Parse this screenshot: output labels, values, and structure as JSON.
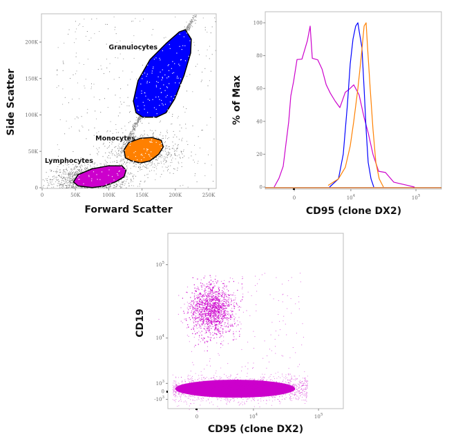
{
  "colors": {
    "lymphocytes": "#cc00cc",
    "monocytes": "#ff8000",
    "granulocytes": "#0000ff",
    "ungated": "#808080"
  },
  "chart_data": [
    {
      "type": "scatter",
      "xlabel": "Forward Scatter",
      "ylabel": "Side Scatter",
      "xlim": [
        0,
        265000
      ],
      "ylim": [
        -5000,
        240000
      ],
      "xticks": [
        {
          "v": 0,
          "label": "0"
        },
        {
          "v": 50000,
          "label": "50K"
        },
        {
          "v": 100000,
          "label": "100K"
        },
        {
          "v": 150000,
          "label": "150K"
        },
        {
          "v": 200000,
          "label": "200K"
        },
        {
          "v": 250000,
          "label": "250K"
        }
      ],
      "yticks": [
        {
          "v": 0,
          "label": "0"
        },
        {
          "v": 50000,
          "label": "50K"
        },
        {
          "v": 100000,
          "label": "100K"
        },
        {
          "v": 150000,
          "label": "150K"
        },
        {
          "v": 200000,
          "label": "200K"
        }
      ],
      "gates": [
        {
          "name": "Granulocytes",
          "color": "#0000ff",
          "polygon": [
            [
              215000,
              217000
            ],
            [
              224000,
              204000
            ],
            [
              223000,
              185000
            ],
            [
              213000,
              154000
            ],
            [
              199000,
              122000
            ],
            [
              186000,
              103000
            ],
            [
              172000,
              97000
            ],
            [
              151000,
              97000
            ],
            [
              141000,
              103000
            ],
            [
              137000,
              119000
            ],
            [
              144000,
              147000
            ],
            [
              162000,
              176000
            ],
            [
              186000,
              198000
            ],
            [
              206000,
              214000
            ]
          ],
          "label_at": [
            100000,
            190000
          ]
        },
        {
          "name": "Monocytes",
          "color": "#ff8000",
          "polygon": [
            [
              123000,
              52000
            ],
            [
              130000,
              62000
            ],
            [
              148000,
              68000
            ],
            [
              165000,
              69000
            ],
            [
              179000,
              65000
            ],
            [
              182000,
              56000
            ],
            [
              175000,
              46000
            ],
            [
              162000,
              37000
            ],
            [
              148000,
              34000
            ],
            [
              134000,
              37000
            ],
            [
              125000,
              41000
            ]
          ],
          "label_at": [
            80000,
            65000
          ]
        },
        {
          "name": "Lymphocytes",
          "color": "#cc00cc",
          "polygon": [
            [
              47000,
              8000
            ],
            [
              54000,
              18000
            ],
            [
              75000,
              26000
            ],
            [
              99000,
              30000
            ],
            [
              120000,
              30000
            ],
            [
              126000,
              24000
            ],
            [
              123000,
              15000
            ],
            [
              110000,
              8000
            ],
            [
              92000,
              2000
            ],
            [
              75000,
              300
            ],
            [
              54000,
              2500
            ]
          ],
          "label_at": [
            4000,
            34000
          ]
        }
      ]
    },
    {
      "type": "line",
      "xlabel": "CD95 (clone DX2)",
      "ylabel": "% of Max",
      "xscale": "biexponential",
      "xlim": [
        -3500,
        240000
      ],
      "ylim": [
        0,
        100
      ],
      "xticks": [
        {
          "v": 0,
          "label": "0"
        },
        {
          "v": 10000,
          "base": "10",
          "exp": "4"
        },
        {
          "v": 100000,
          "base": "10",
          "exp": "5"
        }
      ],
      "yticks": [
        0,
        20,
        40,
        60,
        80,
        100
      ],
      "series": [
        {
          "color": "#cc00cc",
          "x": [
            -2140,
            -1570,
            -1110,
            -830,
            -550,
            -340,
            -70,
            270,
            760,
            1330,
            1640,
            1890,
            2580,
            3180,
            3830,
            4550,
            5540,
            6650,
            8170,
            9300,
            11100,
            13500,
            16100,
            18600,
            22100,
            26900,
            34300,
            45900,
            74500,
            95200
          ],
          "y": [
            0,
            5,
            15,
            25,
            40,
            55,
            65,
            75,
            80,
            88,
            98,
            80,
            78,
            72,
            65,
            57,
            52,
            50,
            55,
            58,
            60,
            55,
            45,
            35,
            20,
            12,
            6,
            3,
            1,
            0
          ]
        },
        {
          "color": "#0000ff",
          "x": [
            4430,
            6300,
            7560,
            8820,
            9770,
            10800,
            11900,
            12900,
            13500,
            14900,
            16100,
            17300,
            18600,
            20600,
            22700
          ],
          "y": [
            0,
            5,
            20,
            50,
            75,
            90,
            98,
            100,
            95,
            85,
            60,
            35,
            15,
            5,
            0
          ]
        },
        {
          "color": "#ff8000",
          "x": [
            4170,
            6300,
            8170,
            9770,
            11100,
            12900,
            14600,
            16100,
            17300,
            18200,
            20000,
            22100,
            24400,
            27500,
            31900
          ],
          "y": [
            1,
            5,
            12,
            25,
            40,
            60,
            80,
            98,
            100,
            85,
            60,
            35,
            15,
            5,
            0
          ]
        }
      ]
    },
    {
      "type": "scatter",
      "xlabel": "CD95 (clone DX2)",
      "ylabel": "CD19",
      "xscale": "biexponential",
      "yscale": "biexponential",
      "xlim": [
        -3500,
        240000
      ],
      "ylim": [
        -2000,
        250000
      ],
      "xticks": [
        {
          "v": 0,
          "label": "0"
        },
        {
          "v": 10000,
          "base": "10",
          "exp": "4"
        },
        {
          "v": 100000,
          "base": "10",
          "exp": "5"
        }
      ],
      "yticks": [
        {
          "v": 100000,
          "base": "10",
          "exp": "5"
        },
        {
          "v": 10000,
          "base": "10",
          "exp": "4"
        },
        {
          "v": 1000,
          "base": "10",
          "exp": "3"
        },
        {
          "v": 0,
          "label": "0"
        },
        {
          "v": -1000,
          "base": "-10",
          "exp": "3"
        }
      ],
      "color": "#cc00cc",
      "populations": [
        {
          "cd95_center": 1500,
          "cd19_center": 25000
        },
        {
          "cd95_range": [
            -2000,
            40000
          ],
          "cd19_center": 500
        }
      ]
    }
  ]
}
